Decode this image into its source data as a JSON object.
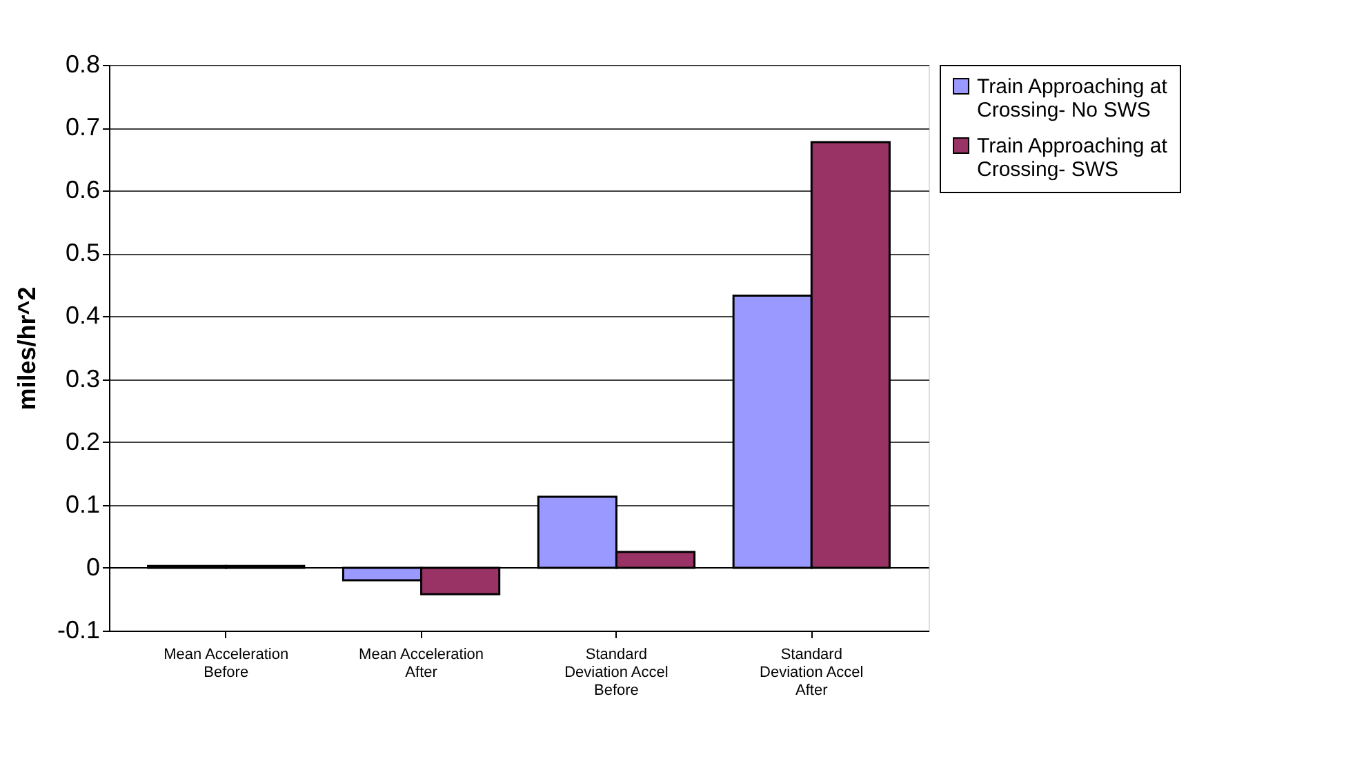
{
  "chart_data": {
    "type": "bar",
    "ylabel": "miles/hr^2",
    "categories": [
      "Mean Acceleration Before",
      "Mean Acceleration After",
      "Standard Deviation Accel Before",
      "Standard Deviation Accel After"
    ],
    "series": [
      {
        "name": "Train Approaching at Crossing- No SWS",
        "color": "#9999ff",
        "values": [
          0.003,
          -0.02,
          0.113,
          0.433
        ]
      },
      {
        "name": "Train Approaching at Crossing- SWS",
        "color": "#993366",
        "values": [
          0.003,
          -0.042,
          0.025,
          0.677
        ]
      }
    ],
    "ylim": [
      -0.1,
      0.8
    ],
    "yticks": [
      -0.1,
      0,
      0.1,
      0.2,
      0.3,
      0.4,
      0.5,
      0.6,
      0.7,
      0.8
    ],
    "grid": "y",
    "legend": "right"
  }
}
